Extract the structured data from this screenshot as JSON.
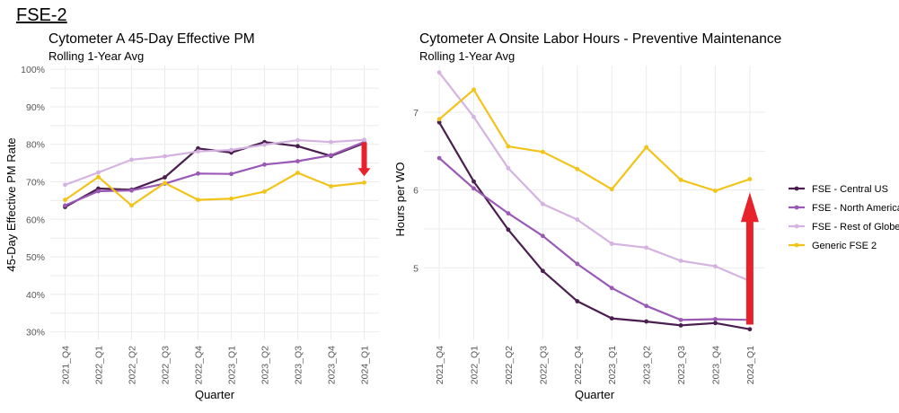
{
  "page": {
    "title": "FSE-2"
  },
  "chart_data": [
    {
      "type": "line",
      "title": "Cytometer A 45-Day Effective PM",
      "subtitle": "Rolling 1-Year Avg",
      "xlabel": "Quarter",
      "ylabel": "45-Day Effective PM Rate",
      "ylim": [
        0.28,
        1.01
      ],
      "yticks": [
        0.3,
        0.4,
        0.5,
        0.6,
        0.7,
        0.8,
        0.9,
        1.0
      ],
      "ytick_labels": [
        "30%",
        "40%",
        "50%",
        "60%",
        "70%",
        "80%",
        "90%",
        "100%"
      ],
      "categories": [
        "2021_Q4",
        "2022_Q1",
        "2022_Q2",
        "2022_Q3",
        "2022_Q4",
        "2023_Q1",
        "2023_Q2",
        "2023_Q3",
        "2023_Q4",
        "2024_Q1"
      ],
      "series": [
        {
          "name": "FSE - Central US",
          "color": "#4a1e4f",
          "values": [
            0.633,
            0.682,
            0.679,
            0.712,
            0.789,
            0.778,
            0.806,
            0.795,
            0.769,
            0.803
          ]
        },
        {
          "name": "FSE - North America",
          "color": "#9b59b6",
          "values": [
            0.637,
            0.675,
            0.677,
            0.695,
            0.722,
            0.721,
            0.746,
            0.755,
            0.771,
            0.806
          ]
        },
        {
          "name": "FSE - Rest of Globe",
          "color": "#d4b3e0",
          "values": [
            0.692,
            0.725,
            0.759,
            0.768,
            0.781,
            0.785,
            0.799,
            0.811,
            0.806,
            0.812
          ]
        },
        {
          "name": "Generic FSE 2",
          "color": "#f2c318",
          "values": [
            0.652,
            0.713,
            0.637,
            0.697,
            0.652,
            0.655,
            0.674,
            0.724,
            0.688,
            0.698
          ]
        }
      ],
      "annotations": [
        {
          "type": "arrow",
          "direction": "down",
          "color": "#e8222a",
          "category": "2024_Q1"
        }
      ],
      "grid": true
    },
    {
      "type": "line",
      "title": "Cytometer A Onsite Labor Hours - Preventive Maintenance",
      "subtitle": "Rolling 1-Year Avg",
      "xlabel": "Quarter",
      "ylabel": "Hours per WO",
      "ylim": [
        4.08,
        7.6
      ],
      "yticks": [
        5,
        6,
        7
      ],
      "ytick_labels": [
        "5",
        "6",
        "7"
      ],
      "categories": [
        "2021_Q4",
        "2022_Q1",
        "2022_Q2",
        "2022_Q3",
        "2022_Q4",
        "2023_Q1",
        "2023_Q2",
        "2023_Q3",
        "2023_Q4",
        "2024_Q1"
      ],
      "series": [
        {
          "name": "FSE - Central US",
          "color": "#4a1e4f",
          "values": [
            6.87,
            6.11,
            5.49,
            4.96,
            4.57,
            4.35,
            4.31,
            4.26,
            4.29,
            4.21
          ]
        },
        {
          "name": "FSE - North America",
          "color": "#9b59b6",
          "values": [
            6.41,
            6.02,
            5.7,
            5.41,
            5.05,
            4.74,
            4.51,
            4.33,
            4.34,
            4.33
          ]
        },
        {
          "name": "FSE - Rest of Globe",
          "color": "#d4b3e0",
          "values": [
            7.51,
            6.94,
            6.28,
            5.82,
            5.62,
            5.31,
            5.26,
            5.09,
            5.02,
            4.83
          ]
        },
        {
          "name": "Generic FSE 2",
          "color": "#f2c318",
          "values": [
            6.91,
            7.29,
            6.56,
            6.49,
            6.27,
            6.01,
            6.55,
            6.13,
            5.99,
            6.14
          ]
        }
      ],
      "annotations": [
        {
          "type": "arrow",
          "direction": "up",
          "color": "#e8222a",
          "category": "2024_Q1"
        }
      ],
      "grid": true,
      "legend": "right"
    }
  ]
}
